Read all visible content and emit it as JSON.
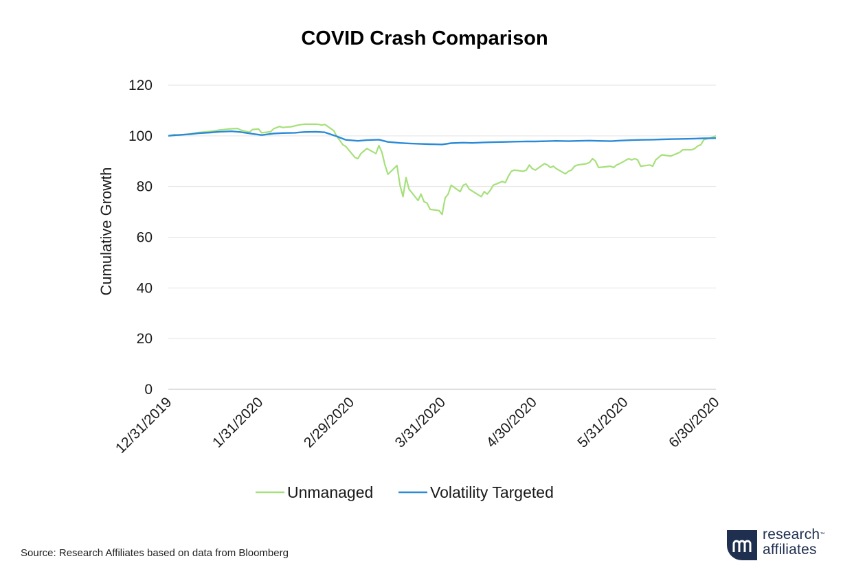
{
  "chart_data": {
    "type": "line",
    "title": "COVID Crash Comparison",
    "ylabel": "Cumulative Growth",
    "xlabel": "",
    "ylim": [
      0,
      120
    ],
    "yticks": [
      0,
      20,
      40,
      60,
      80,
      100,
      120
    ],
    "xtick_labels": [
      "12/31/2019",
      "1/31/2020",
      "2/29/2020",
      "3/31/2020",
      "4/30/2020",
      "5/31/2020",
      "6/30/2020"
    ],
    "xlim": [
      "2019-12-31",
      "2020-06-30"
    ],
    "grid": "horizontal",
    "legend_position": "bottom",
    "series": [
      {
        "name": "Unmanaged",
        "color": "#a6e07a",
        "points": [
          [
            "2019-12-31",
            100.0
          ],
          [
            "2020-01-02",
            100.5
          ],
          [
            "2020-01-03",
            100.2
          ],
          [
            "2020-01-06",
            100.6
          ],
          [
            "2020-01-08",
            100.9
          ],
          [
            "2020-01-10",
            101.3
          ],
          [
            "2020-01-13",
            101.6
          ],
          [
            "2020-01-15",
            101.9
          ],
          [
            "2020-01-17",
            102.3
          ],
          [
            "2020-01-21",
            102.8
          ],
          [
            "2020-01-23",
            102.9
          ],
          [
            "2020-01-24",
            102.3
          ],
          [
            "2020-01-27",
            101.4
          ],
          [
            "2020-01-28",
            102.5
          ],
          [
            "2020-01-30",
            102.7
          ],
          [
            "2020-01-31",
            101.2
          ],
          [
            "2020-02-03",
            101.6
          ],
          [
            "2020-02-04",
            102.8
          ],
          [
            "2020-02-06",
            103.7
          ],
          [
            "2020-02-07",
            103.3
          ],
          [
            "2020-02-10",
            103.6
          ],
          [
            "2020-02-12",
            104.2
          ],
          [
            "2020-02-14",
            104.6
          ],
          [
            "2020-02-18",
            104.6
          ],
          [
            "2020-02-19",
            104.5
          ],
          [
            "2020-02-20",
            104.2
          ],
          [
            "2020-02-21",
            104.5
          ],
          [
            "2020-02-24",
            102.0
          ],
          [
            "2020-02-25",
            99.8
          ],
          [
            "2020-02-26",
            98.2
          ],
          [
            "2020-02-27",
            96.5
          ],
          [
            "2020-02-28",
            95.8
          ],
          [
            "2020-03-02",
            91.5
          ],
          [
            "2020-03-03",
            91.0
          ],
          [
            "2020-03-04",
            93.0
          ],
          [
            "2020-03-05",
            94.0
          ],
          [
            "2020-03-06",
            95.0
          ],
          [
            "2020-03-09",
            93.0
          ],
          [
            "2020-03-10",
            96.2
          ],
          [
            "2020-03-11",
            93.5
          ],
          [
            "2020-03-12",
            88.5
          ],
          [
            "2020-03-13",
            84.8
          ],
          [
            "2020-03-16",
            88.3
          ],
          [
            "2020-03-17",
            80.5
          ],
          [
            "2020-03-18",
            76.0
          ],
          [
            "2020-03-19",
            83.5
          ],
          [
            "2020-03-20",
            79.0
          ],
          [
            "2020-03-23",
            74.5
          ],
          [
            "2020-03-24",
            77.0
          ],
          [
            "2020-03-25",
            74.0
          ],
          [
            "2020-03-26",
            73.5
          ],
          [
            "2020-03-27",
            71.0
          ],
          [
            "2020-03-30",
            70.5
          ],
          [
            "2020-03-31",
            69.0
          ],
          [
            "2020-04-01",
            75.5
          ],
          [
            "2020-04-02",
            77.0
          ],
          [
            "2020-04-03",
            80.5
          ],
          [
            "2020-04-06",
            78.0
          ],
          [
            "2020-04-07",
            80.5
          ],
          [
            "2020-04-08",
            81.0
          ],
          [
            "2020-04-09",
            79.0
          ],
          [
            "2020-04-13",
            76.0
          ],
          [
            "2020-04-14",
            78.0
          ],
          [
            "2020-04-15",
            77.0
          ],
          [
            "2020-04-16",
            78.5
          ],
          [
            "2020-04-17",
            80.5
          ],
          [
            "2020-04-20",
            82.0
          ],
          [
            "2020-04-21",
            81.5
          ],
          [
            "2020-04-22",
            84.0
          ],
          [
            "2020-04-23",
            86.0
          ],
          [
            "2020-04-24",
            86.5
          ],
          [
            "2020-04-27",
            86.0
          ],
          [
            "2020-04-28",
            86.5
          ],
          [
            "2020-04-29",
            88.5
          ],
          [
            "2020-04-30",
            87.0
          ],
          [
            "2020-05-01",
            86.5
          ],
          [
            "2020-05-04",
            89.0
          ],
          [
            "2020-05-05",
            88.5
          ],
          [
            "2020-05-06",
            87.5
          ],
          [
            "2020-05-07",
            88.0
          ],
          [
            "2020-05-08",
            87.0
          ],
          [
            "2020-05-11",
            85.0
          ],
          [
            "2020-05-12",
            86.0
          ],
          [
            "2020-05-13",
            86.5
          ],
          [
            "2020-05-14",
            88.0
          ],
          [
            "2020-05-15",
            88.5
          ],
          [
            "2020-05-18",
            89.0
          ],
          [
            "2020-05-19",
            89.5
          ],
          [
            "2020-05-20",
            91.0
          ],
          [
            "2020-05-21",
            90.0
          ],
          [
            "2020-05-22",
            87.5
          ],
          [
            "2020-05-26",
            88.0
          ],
          [
            "2020-05-27",
            87.5
          ],
          [
            "2020-05-28",
            88.5
          ],
          [
            "2020-05-29",
            89.0
          ],
          [
            "2020-06-01",
            91.0
          ],
          [
            "2020-06-02",
            90.5
          ],
          [
            "2020-06-03",
            91.0
          ],
          [
            "2020-06-04",
            90.5
          ],
          [
            "2020-06-05",
            88.0
          ],
          [
            "2020-06-08",
            88.5
          ],
          [
            "2020-06-09",
            88.0
          ],
          [
            "2020-06-10",
            90.5
          ],
          [
            "2020-06-11",
            91.5
          ],
          [
            "2020-06-12",
            92.5
          ],
          [
            "2020-06-15",
            92.0
          ],
          [
            "2020-06-16",
            92.5
          ],
          [
            "2020-06-17",
            93.0
          ],
          [
            "2020-06-18",
            93.5
          ],
          [
            "2020-06-19",
            94.5
          ],
          [
            "2020-06-22",
            94.5
          ],
          [
            "2020-06-23",
            95.0
          ],
          [
            "2020-06-24",
            96.0
          ],
          [
            "2020-06-25",
            96.5
          ],
          [
            "2020-06-26",
            98.5
          ],
          [
            "2020-06-29",
            99.5
          ],
          [
            "2020-06-30",
            100.0
          ]
        ]
      },
      {
        "name": "Volatility Targeted",
        "color": "#2a8ad8",
        "points": [
          [
            "2019-12-31",
            100.0
          ],
          [
            "2020-01-03",
            100.3
          ],
          [
            "2020-01-07",
            100.6
          ],
          [
            "2020-01-10",
            101.0
          ],
          [
            "2020-01-14",
            101.3
          ],
          [
            "2020-01-17",
            101.6
          ],
          [
            "2020-01-21",
            101.8
          ],
          [
            "2020-01-24",
            101.5
          ],
          [
            "2020-01-28",
            100.8
          ],
          [
            "2020-01-31",
            100.3
          ],
          [
            "2020-02-04",
            100.9
          ],
          [
            "2020-02-07",
            101.1
          ],
          [
            "2020-02-11",
            101.2
          ],
          [
            "2020-02-14",
            101.5
          ],
          [
            "2020-02-18",
            101.6
          ],
          [
            "2020-02-21",
            101.4
          ],
          [
            "2020-02-25",
            99.8
          ],
          [
            "2020-02-28",
            98.4
          ],
          [
            "2020-03-03",
            98.0
          ],
          [
            "2020-03-06",
            98.3
          ],
          [
            "2020-03-10",
            98.5
          ],
          [
            "2020-03-13",
            97.6
          ],
          [
            "2020-03-17",
            97.2
          ],
          [
            "2020-03-20",
            97.0
          ],
          [
            "2020-03-24",
            96.8
          ],
          [
            "2020-03-27",
            96.7
          ],
          [
            "2020-03-31",
            96.6
          ],
          [
            "2020-04-03",
            97.1
          ],
          [
            "2020-04-07",
            97.3
          ],
          [
            "2020-04-10",
            97.2
          ],
          [
            "2020-04-14",
            97.4
          ],
          [
            "2020-04-17",
            97.5
          ],
          [
            "2020-04-21",
            97.6
          ],
          [
            "2020-04-24",
            97.7
          ],
          [
            "2020-04-28",
            97.8
          ],
          [
            "2020-05-01",
            97.8
          ],
          [
            "2020-05-05",
            97.9
          ],
          [
            "2020-05-08",
            98.0
          ],
          [
            "2020-05-12",
            97.9
          ],
          [
            "2020-05-15",
            98.0
          ],
          [
            "2020-05-19",
            98.1
          ],
          [
            "2020-05-22",
            98.0
          ],
          [
            "2020-05-26",
            97.9
          ],
          [
            "2020-05-29",
            98.1
          ],
          [
            "2020-06-02",
            98.3
          ],
          [
            "2020-06-05",
            98.4
          ],
          [
            "2020-06-09",
            98.5
          ],
          [
            "2020-06-12",
            98.6
          ],
          [
            "2020-06-16",
            98.7
          ],
          [
            "2020-06-19",
            98.8
          ],
          [
            "2020-06-23",
            98.9
          ],
          [
            "2020-06-26",
            99.0
          ],
          [
            "2020-06-30",
            99.1
          ]
        ]
      }
    ]
  },
  "source_text": "Source: Research Affiliates based on data from Bloomberg",
  "logo": {
    "line1": "research",
    "line2": "affiliates",
    "mark": "™"
  }
}
